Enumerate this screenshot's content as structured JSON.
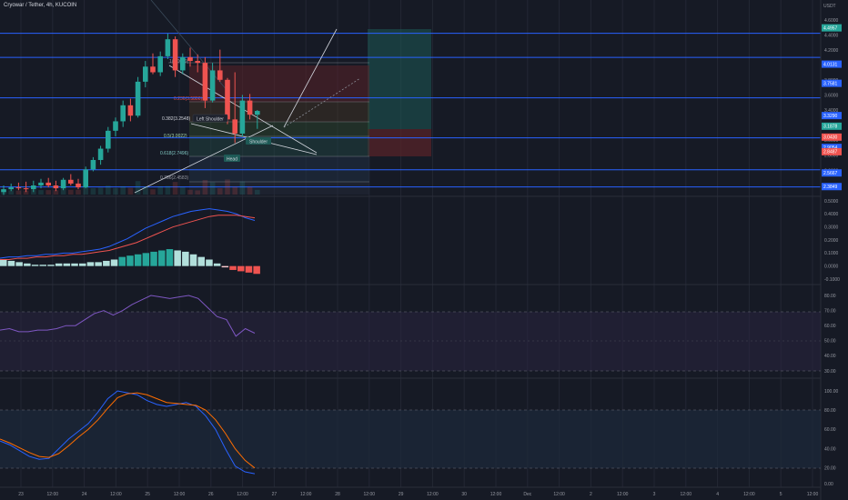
{
  "header": {
    "title": "Cryowar / Tether, 4h, KUCOIN"
  },
  "price_axis": {
    "unit": "USDT",
    "ticks": [
      "4.6000",
      "4.4000",
      "4.2000",
      "4.0000",
      "3.8000",
      "3.6000",
      "3.4000",
      "3.2000",
      "3.0000",
      "2.8000",
      "2.6000",
      "2.4000"
    ],
    "tags": [
      {
        "text": "4.4957",
        "color": "#26a69a"
      },
      {
        "text": "4.0131",
        "color": "#2962ff"
      },
      {
        "text": "3.7581",
        "color": "#2962ff"
      },
      {
        "text": "3.3290",
        "color": "#2962ff"
      },
      {
        "text": "3.1878",
        "color": "#26a69a"
      },
      {
        "text": "3.0430",
        "color": "#ef5350"
      },
      {
        "text": "2.9054",
        "color": "#2962ff"
      },
      {
        "text": "2.8487",
        "color": "#ef5350"
      },
      {
        "text": "2.5667",
        "color": "#2962ff"
      },
      {
        "text": "2.3849",
        "color": "#2962ff"
      }
    ]
  },
  "fib_labels": [
    "1(4.0079)",
    "0.236(3.5806)",
    "0.382(3.2548)",
    "0.5(3.0022)",
    "0.618(2.7496)",
    "0.786(2.4583)"
  ],
  "pattern_labels": {
    "left_shoulder": "Left Shoulder",
    "head": "Head",
    "right_shoulder": "Shoulder"
  },
  "macd_axis": {
    "ticks": [
      "0.5000",
      "0.4000",
      "0.3000",
      "0.2000",
      "0.1000",
      "0.0000",
      "-0.1000"
    ]
  },
  "rsi_axis": {
    "ticks": [
      "80.00",
      "70.00",
      "60.00",
      "50.00",
      "40.00",
      "30.00"
    ]
  },
  "stoch_axis": {
    "ticks": [
      "100.00",
      "80.00",
      "60.00",
      "40.00",
      "20.00",
      "0.00"
    ]
  },
  "time_axis": {
    "ticks": [
      "23",
      "12:00",
      "24",
      "12:00",
      "25",
      "12:00",
      "26",
      "12:00",
      "27",
      "12:00",
      "28",
      "12:00",
      "29",
      "12:00",
      "30",
      "12:00",
      "Dec",
      "12:00",
      "2",
      "12:00",
      "3",
      "12:00",
      "4",
      "12:00",
      "5",
      "12:00"
    ]
  },
  "colors": {
    "up": "#26a69a",
    "down": "#ef5350",
    "level": "#2962ff",
    "bg": "#161a25"
  },
  "chart_data": {
    "type": "candlestick",
    "candles": [
      {
        "o": 2.33,
        "h": 2.4,
        "l": 2.3,
        "c": 2.36
      },
      {
        "o": 2.36,
        "h": 2.42,
        "l": 2.34,
        "c": 2.38
      },
      {
        "o": 2.38,
        "h": 2.43,
        "l": 2.35,
        "c": 2.37
      },
      {
        "o": 2.37,
        "h": 2.44,
        "l": 2.33,
        "c": 2.36
      },
      {
        "o": 2.36,
        "h": 2.45,
        "l": 2.33,
        "c": 2.4
      },
      {
        "o": 2.4,
        "h": 2.47,
        "l": 2.37,
        "c": 2.43
      },
      {
        "o": 2.43,
        "h": 2.48,
        "l": 2.38,
        "c": 2.4
      },
      {
        "o": 2.4,
        "h": 2.45,
        "l": 2.34,
        "c": 2.37
      },
      {
        "o": 2.37,
        "h": 2.48,
        "l": 2.35,
        "c": 2.46
      },
      {
        "o": 2.46,
        "h": 2.52,
        "l": 2.4,
        "c": 2.42
      },
      {
        "o": 2.42,
        "h": 2.47,
        "l": 2.36,
        "c": 2.38
      },
      {
        "o": 2.38,
        "h": 2.6,
        "l": 2.37,
        "c": 2.57
      },
      {
        "o": 2.57,
        "h": 2.7,
        "l": 2.55,
        "c": 2.67
      },
      {
        "o": 2.67,
        "h": 2.82,
        "l": 2.62,
        "c": 2.79
      },
      {
        "o": 2.79,
        "h": 3.02,
        "l": 2.75,
        "c": 2.98
      },
      {
        "o": 2.98,
        "h": 3.12,
        "l": 2.92,
        "c": 3.08
      },
      {
        "o": 3.08,
        "h": 3.3,
        "l": 3.02,
        "c": 3.25
      },
      {
        "o": 3.25,
        "h": 3.32,
        "l": 3.08,
        "c": 3.14
      },
      {
        "o": 3.14,
        "h": 3.55,
        "l": 3.12,
        "c": 3.5
      },
      {
        "o": 3.5,
        "h": 3.72,
        "l": 3.44,
        "c": 3.66
      },
      {
        "o": 3.66,
        "h": 3.8,
        "l": 3.58,
        "c": 3.6
      },
      {
        "o": 3.6,
        "h": 3.82,
        "l": 3.56,
        "c": 3.77
      },
      {
        "o": 3.77,
        "h": 4.01,
        "l": 3.74,
        "c": 3.95
      },
      {
        "o": 3.95,
        "h": 3.98,
        "l": 3.55,
        "c": 3.62
      },
      {
        "o": 3.62,
        "h": 3.8,
        "l": 3.58,
        "c": 3.76
      },
      {
        "o": 3.76,
        "h": 3.86,
        "l": 3.66,
        "c": 3.72
      },
      {
        "o": 3.72,
        "h": 3.79,
        "l": 3.6,
        "c": 3.7
      },
      {
        "o": 3.7,
        "h": 3.76,
        "l": 3.22,
        "c": 3.3
      },
      {
        "o": 3.3,
        "h": 3.7,
        "l": 3.28,
        "c": 3.62
      },
      {
        "o": 3.62,
        "h": 3.84,
        "l": 3.5,
        "c": 3.52
      },
      {
        "o": 3.52,
        "h": 3.54,
        "l": 3.05,
        "c": 3.1
      },
      {
        "o": 3.1,
        "h": 3.6,
        "l": 2.85,
        "c": 2.95
      },
      {
        "o": 2.95,
        "h": 3.36,
        "l": 2.92,
        "c": 3.3
      },
      {
        "o": 3.3,
        "h": 3.37,
        "l": 3.1,
        "c": 3.15
      },
      {
        "o": 3.15,
        "h": 3.2,
        "l": 3.0,
        "c": 3.19
      }
    ],
    "macd": {
      "macd": [
        0.06,
        0.07,
        0.07,
        0.08,
        0.08,
        0.09,
        0.09,
        0.1,
        0.1,
        0.11,
        0.12,
        0.13,
        0.15,
        0.18,
        0.21,
        0.25,
        0.29,
        0.32,
        0.35,
        0.38,
        0.4,
        0.42,
        0.43,
        0.44,
        0.43,
        0.42,
        0.4,
        0.37,
        0.35
      ],
      "signal": [
        0.05,
        0.05,
        0.06,
        0.06,
        0.07,
        0.07,
        0.08,
        0.08,
        0.09,
        0.09,
        0.1,
        0.11,
        0.12,
        0.14,
        0.16,
        0.18,
        0.21,
        0.24,
        0.27,
        0.3,
        0.32,
        0.34,
        0.36,
        0.38,
        0.39,
        0.39,
        0.39,
        0.38,
        0.37
      ],
      "hist": [
        0.05,
        0.04,
        0.03,
        0.02,
        0.01,
        0.01,
        0.01,
        0.02,
        0.02,
        0.02,
        0.02,
        0.03,
        0.03,
        0.04,
        0.05,
        0.07,
        0.08,
        0.09,
        0.1,
        0.11,
        0.12,
        0.13,
        0.12,
        0.11,
        0.09,
        0.07,
        0.05,
        0.02,
        -0.01,
        -0.03,
        -0.04,
        -0.05,
        -0.06
      ]
    },
    "rsi": [
      57,
      58,
      56,
      56,
      57,
      57,
      58,
      60,
      60,
      64,
      68,
      70,
      67,
      70,
      74,
      77,
      80,
      79,
      78,
      79,
      80,
      78,
      72,
      66,
      64,
      53,
      58,
      55
    ],
    "stoch": {
      "k": [
        48,
        44,
        38,
        32,
        29,
        30,
        40,
        50,
        58,
        66,
        78,
        92,
        100,
        98,
        96,
        90,
        86,
        84,
        86,
        88,
        84,
        74,
        60,
        40,
        22,
        16,
        14
      ],
      "d": [
        50,
        46,
        41,
        36,
        32,
        31,
        35,
        43,
        52,
        60,
        70,
        82,
        93,
        97,
        98,
        96,
        92,
        88,
        87,
        86,
        85,
        80,
        70,
        56,
        40,
        28,
        20
      ]
    },
    "levels": [
      4.4957,
      4.0131,
      3.7581,
      3.329,
      2.9054,
      2.5667,
      2.3849
    ]
  }
}
